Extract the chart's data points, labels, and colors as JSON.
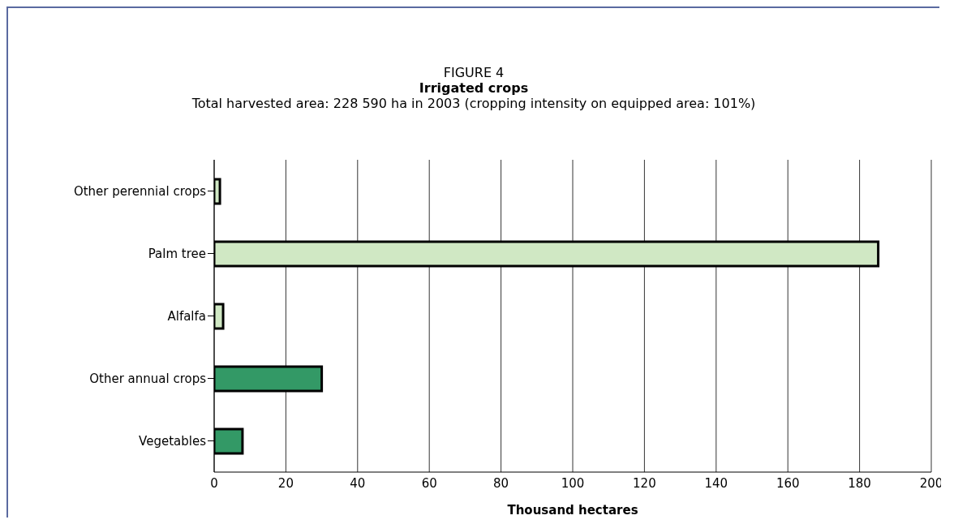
{
  "chart_data": {
    "type": "bar",
    "orientation": "horizontal",
    "annotations": [
      "FIGURE 4"
    ],
    "title": "Irrigated crops",
    "subtitle": "Total harvested area: 228 590 ha in 2003 (cropping intensity on equipped area: 101%)",
    "categories": [
      "Other perennial crops",
      "Palm tree",
      "Alfalfa",
      "Other annual crops",
      "Vegetables"
    ],
    "values": [
      1.6,
      185.2,
      2.5,
      30.0,
      7.9
    ],
    "colors": [
      "#d0e8c4",
      "#d0e8c4",
      "#d0e8c4",
      "#339966",
      "#339966"
    ],
    "xlabel": "Thousand hectares",
    "xlim": [
      0,
      200
    ],
    "xticks": [
      0,
      20,
      40,
      60,
      80,
      100,
      120,
      140,
      160,
      180,
      200
    ],
    "grid": "x"
  }
}
